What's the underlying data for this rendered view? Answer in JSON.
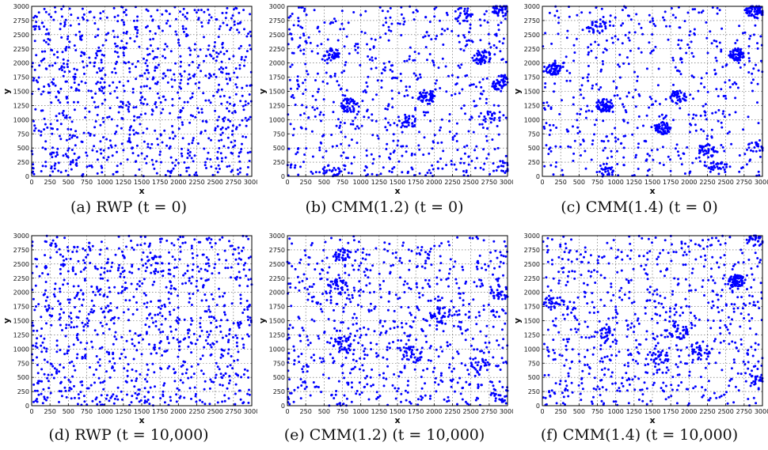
{
  "chart_data": [
    {
      "type": "scatter",
      "caption": "(a) RWP (t = 0)",
      "xlabel": "x",
      "ylabel": "y",
      "xlim": [
        0,
        3000
      ],
      "ylim": [
        0,
        3000
      ],
      "xticks": [
        "0",
        "250",
        "500",
        "750",
        "1000",
        "1250",
        "1500",
        "1750",
        "2000",
        "2250",
        "2500",
        "2750",
        "3000"
      ],
      "yticks": [
        "0",
        "250",
        "500",
        "750",
        "1000",
        "1250",
        "1500",
        "1750",
        "2000",
        "2250",
        "2500",
        "2750",
        "3000"
      ],
      "grid": true,
      "point_color": "#0000ff",
      "num_points": 1000,
      "seed": 11,
      "clusters": []
    },
    {
      "type": "scatter",
      "caption": "(b) CMM(1.2) (t = 0)",
      "xlabel": "x",
      "ylabel": "y",
      "xlim": [
        0,
        3000
      ],
      "ylim": [
        0,
        3000
      ],
      "xticks": [
        "0",
        "250",
        "500",
        "750",
        "1000",
        "1250",
        "1500",
        "1750",
        "2000",
        "2250",
        "2500",
        "2750",
        "3000"
      ],
      "yticks": [
        "0",
        "250",
        "500",
        "750",
        "1000",
        "1250",
        "1500",
        "1750",
        "2000",
        "2250",
        "2500",
        "2750",
        "3000"
      ],
      "grid": true,
      "point_color": "#0000ff",
      "num_points": 1000,
      "seed": 23,
      "clusters": [
        {
          "x": 2650,
          "y": 2100,
          "r": 130,
          "n": 50
        },
        {
          "x": 2900,
          "y": 1650,
          "r": 130,
          "n": 45
        },
        {
          "x": 1900,
          "y": 1400,
          "r": 130,
          "n": 45
        },
        {
          "x": 850,
          "y": 1250,
          "r": 130,
          "n": 45
        },
        {
          "x": 600,
          "y": 2150,
          "r": 110,
          "n": 40
        },
        {
          "x": 2900,
          "y": 2950,
          "r": 120,
          "n": 35
        },
        {
          "x": 2400,
          "y": 2850,
          "r": 130,
          "n": 25
        },
        {
          "x": 1650,
          "y": 950,
          "r": 130,
          "n": 25
        },
        {
          "x": 2750,
          "y": 1000,
          "r": 160,
          "n": 25
        },
        {
          "x": 600,
          "y": 100,
          "r": 120,
          "n": 20
        },
        {
          "x": 2900,
          "y": 150,
          "r": 130,
          "n": 20
        }
      ]
    },
    {
      "type": "scatter",
      "caption": "(c) CMM(1.4) (t = 0)",
      "xlabel": "x",
      "ylabel": "y",
      "xlim": [
        0,
        3000
      ],
      "ylim": [
        0,
        3000
      ],
      "xticks": [
        "0",
        "250",
        "500",
        "750",
        "1000",
        "1250",
        "1500",
        "1750",
        "2000",
        "2250",
        "2500",
        "2750",
        "3000"
      ],
      "yticks": [
        "0",
        "250",
        "500",
        "750",
        "1000",
        "1250",
        "1500",
        "1750",
        "2000",
        "2250",
        "2500",
        "2750",
        "3000"
      ],
      "grid": true,
      "point_color": "#0000ff",
      "num_points": 1000,
      "seed": 37,
      "clusters": [
        {
          "x": 2900,
          "y": 2900,
          "r": 120,
          "n": 60
        },
        {
          "x": 2650,
          "y": 2150,
          "r": 110,
          "n": 70
        },
        {
          "x": 150,
          "y": 1900,
          "r": 110,
          "n": 50
        },
        {
          "x": 850,
          "y": 1250,
          "r": 120,
          "n": 55
        },
        {
          "x": 1650,
          "y": 850,
          "r": 110,
          "n": 55
        },
        {
          "x": 1850,
          "y": 1400,
          "r": 120,
          "n": 40
        },
        {
          "x": 2250,
          "y": 450,
          "r": 120,
          "n": 35
        },
        {
          "x": 2400,
          "y": 150,
          "r": 130,
          "n": 30
        },
        {
          "x": 750,
          "y": 2650,
          "r": 130,
          "n": 30
        },
        {
          "x": 850,
          "y": 100,
          "r": 120,
          "n": 25
        },
        {
          "x": 2900,
          "y": 500,
          "r": 120,
          "n": 20
        }
      ]
    },
    {
      "type": "scatter",
      "caption": "(d) RWP (t = 10,000)",
      "xlabel": "x",
      "ylabel": "y",
      "xlim": [
        0,
        3000
      ],
      "ylim": [
        0,
        3000
      ],
      "xticks": [
        "0",
        "250",
        "500",
        "750",
        "1000",
        "1250",
        "1500",
        "1750",
        "2000",
        "2250",
        "2500",
        "2750",
        "3000"
      ],
      "yticks": [
        "0",
        "250",
        "500",
        "750",
        "1000",
        "1250",
        "1500",
        "1750",
        "2000",
        "2250",
        "2500",
        "2750",
        "3000"
      ],
      "grid": true,
      "point_color": "#0000ff",
      "num_points": 1000,
      "seed": 53,
      "clusters": []
    },
    {
      "type": "scatter",
      "caption": "(e) CMM(1.2) (t = 10,000)",
      "xlabel": "x",
      "ylabel": "y",
      "xlim": [
        0,
        3000
      ],
      "ylim": [
        0,
        3000
      ],
      "xticks": [
        "0",
        "250",
        "500",
        "750",
        "1000",
        "1250",
        "1500",
        "1750",
        "2000",
        "2250",
        "2500",
        "2750",
        "3000"
      ],
      "yticks": [
        "0",
        "250",
        "500",
        "750",
        "1000",
        "1250",
        "1500",
        "1750",
        "2000",
        "2250",
        "2500",
        "2750",
        "3000"
      ],
      "grid": true,
      "point_color": "#0000ff",
      "num_points": 1000,
      "seed": 71,
      "clusters": [
        {
          "x": 750,
          "y": 2650,
          "r": 120,
          "n": 30
        },
        {
          "x": 700,
          "y": 2100,
          "r": 140,
          "n": 25
        },
        {
          "x": 2900,
          "y": 2000,
          "r": 140,
          "n": 30
        },
        {
          "x": 2100,
          "y": 1600,
          "r": 150,
          "n": 30
        },
        {
          "x": 750,
          "y": 1100,
          "r": 140,
          "n": 30
        },
        {
          "x": 1700,
          "y": 900,
          "r": 140,
          "n": 30
        },
        {
          "x": 2600,
          "y": 700,
          "r": 160,
          "n": 25
        },
        {
          "x": 2900,
          "y": 200,
          "r": 140,
          "n": 20
        }
      ]
    },
    {
      "type": "scatter",
      "caption": "(f) CMM(1.4) (t = 10,000)",
      "xlabel": "x",
      "ylabel": "y",
      "xlim": [
        0,
        3000
      ],
      "ylim": [
        0,
        3000
      ],
      "xticks": [
        "0",
        "250",
        "500",
        "750",
        "1000",
        "1250",
        "1500",
        "1750",
        "2000",
        "2250",
        "2500",
        "2750",
        "3000"
      ],
      "yticks": [
        "0",
        "250",
        "500",
        "750",
        "1000",
        "1250",
        "1500",
        "1750",
        "2000",
        "2250",
        "2500",
        "2750",
        "3000"
      ],
      "grid": true,
      "point_color": "#0000ff",
      "num_points": 1000,
      "seed": 97,
      "clusters": [
        {
          "x": 2650,
          "y": 2200,
          "r": 110,
          "n": 60
        },
        {
          "x": 2900,
          "y": 2900,
          "r": 120,
          "n": 25
        },
        {
          "x": 1850,
          "y": 1300,
          "r": 130,
          "n": 30
        },
        {
          "x": 1600,
          "y": 850,
          "r": 130,
          "n": 30
        },
        {
          "x": 2150,
          "y": 1000,
          "r": 140,
          "n": 25
        },
        {
          "x": 150,
          "y": 1850,
          "r": 130,
          "n": 25
        },
        {
          "x": 850,
          "y": 1300,
          "r": 140,
          "n": 25
        },
        {
          "x": 2900,
          "y": 450,
          "r": 130,
          "n": 20
        }
      ]
    }
  ]
}
